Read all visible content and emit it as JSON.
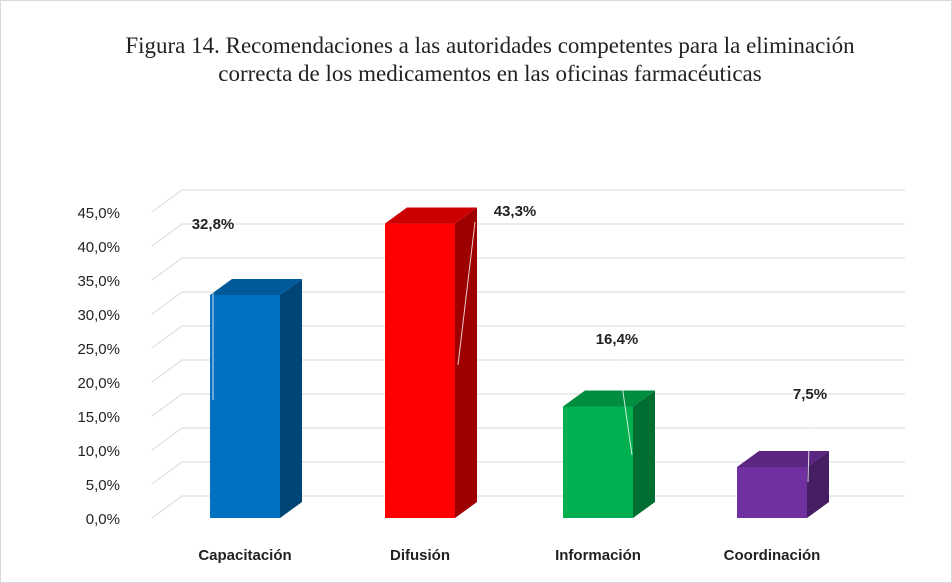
{
  "chart_data": {
    "type": "bar3d",
    "title": "Figura 14. Recomendaciones a las autoridades competentes para la eliminación correcta de los medicamentos en las oficinas farmacéuticas",
    "categories": [
      "Capacitación",
      "Difusión",
      "Información",
      "Coordinación"
    ],
    "values": [
      32.8,
      43.3,
      16.4,
      7.5
    ],
    "value_labels": [
      "32,8%",
      "43,3%",
      "16,4%",
      "7,5%"
    ],
    "colors": [
      "#0070c0",
      "#ff0000",
      "#00b050",
      "#7030a0"
    ],
    "ylim": [
      0,
      45
    ],
    "yticks": [
      {
        "value": 0,
        "label": "0,0%"
      },
      {
        "value": 5,
        "label": "5,0%"
      },
      {
        "value": 10,
        "label": "10,0%"
      },
      {
        "value": 15,
        "label": "15,0%"
      },
      {
        "value": 20,
        "label": "20,0%"
      },
      {
        "value": 25,
        "label": "25,0%"
      },
      {
        "value": 30,
        "label": "30,0%"
      },
      {
        "value": 35,
        "label": "35,0%"
      },
      {
        "value": 40,
        "label": "40,0%"
      },
      {
        "value": 45,
        "label": "45,0%"
      }
    ],
    "grid": true
  }
}
